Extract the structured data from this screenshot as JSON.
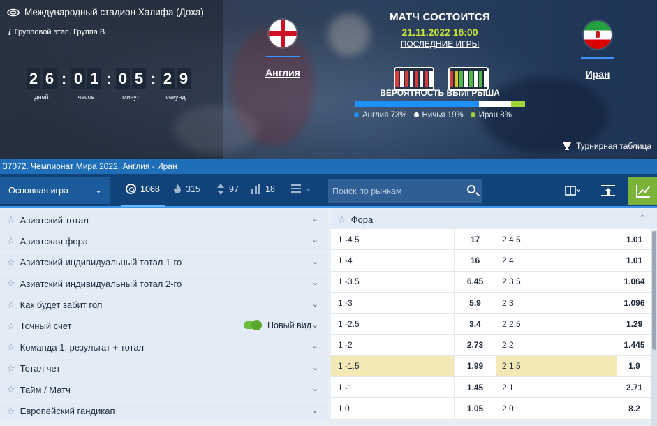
{
  "hero": {
    "stadium": "Международный стадион Халифа (Доха)",
    "stage": "Групповой этап. Группа B.",
    "countdown": {
      "days": [
        "2",
        "6"
      ],
      "hours": [
        "0",
        "1"
      ],
      "minutes": [
        "0",
        "5"
      ],
      "seconds": [
        "2",
        "9"
      ],
      "labels": {
        "days": "дней",
        "hours": "часов",
        "minutes": "минут",
        "seconds": "секунд"
      }
    },
    "team1": {
      "name": "Англия",
      "flag": "england-flag"
    },
    "team2": {
      "name": "Иран",
      "flag": "iran-flag"
    },
    "status": "МАТЧ СОСТОИТСЯ",
    "datetime": "21.11.2022 16:00",
    "last_games": "ПОСЛЕДНИЕ ИГРЫ",
    "form_team1": [
      "r",
      "w",
      "r",
      "w",
      "r",
      "w",
      "r",
      "w"
    ],
    "form_team2": [
      "r",
      "y",
      "g",
      "w",
      "g",
      "w",
      "g",
      "w"
    ],
    "probability_title": "ВЕРОЯТНОСТЬ ВЫИГРЫША",
    "probability": {
      "england": {
        "label": "Англия 73%",
        "value": 73,
        "color": "#1e90ff"
      },
      "draw": {
        "label": "Ничья 19%",
        "value": 19,
        "color": "#ffffff"
      },
      "iran": {
        "label": "Иран 8%",
        "value": 8,
        "color": "#9bd339"
      }
    },
    "tournament_table": "Турнирная таблица"
  },
  "breadcrumb": "37072. Чемпионат Мира 2022. Англия - Иран",
  "toolbar": {
    "market_select": "Основная игра",
    "count_all": "1068",
    "count_hot": "315",
    "count_updown": "97",
    "count_stats": "18",
    "search_placeholder": "Поиск по рынкам"
  },
  "markets": [
    {
      "label": "Азиатский тотал"
    },
    {
      "label": "Азиатская фора"
    },
    {
      "label": "Азиатский индивидуальный тотал 1-го"
    },
    {
      "label": "Азиатский индивидуальный тотал 2-го"
    },
    {
      "label": "Как будет забит гол"
    },
    {
      "label": "Точный счет",
      "toggle_label": "Новый вид"
    },
    {
      "label": "Команда 1, результат + тотал"
    },
    {
      "label": "Тотал чет"
    },
    {
      "label": "Тайм / Матч"
    },
    {
      "label": "Европейский гандикап"
    }
  ],
  "fora": {
    "title": "Фора",
    "rows": [
      {
        "o1": "1 -4.5",
        "k1": "17",
        "o2": "2 4.5",
        "k2": "1.01"
      },
      {
        "o1": "1 -4",
        "k1": "16",
        "o2": "2 4",
        "k2": "1.01"
      },
      {
        "o1": "1 -3.5",
        "k1": "6.45",
        "o2": "2 3.5",
        "k2": "1.064"
      },
      {
        "o1": "1 -3",
        "k1": "5.9",
        "o2": "2 3",
        "k2": "1.096"
      },
      {
        "o1": "1 -2.5",
        "k1": "3.4",
        "o2": "2 2.5",
        "k2": "1.29"
      },
      {
        "o1": "1 -2",
        "k1": "2.73",
        "o2": "2 2",
        "k2": "1.445"
      },
      {
        "o1": "1 -1.5",
        "k1": "1.99",
        "o2": "2 1.5",
        "k2": "1.9",
        "highlight": true
      },
      {
        "o1": "1 -1",
        "k1": "1.45",
        "o2": "2 1",
        "k2": "2.71"
      },
      {
        "o1": "1 0",
        "k1": "1.05",
        "o2": "2 0",
        "k2": "8.2"
      }
    ]
  }
}
